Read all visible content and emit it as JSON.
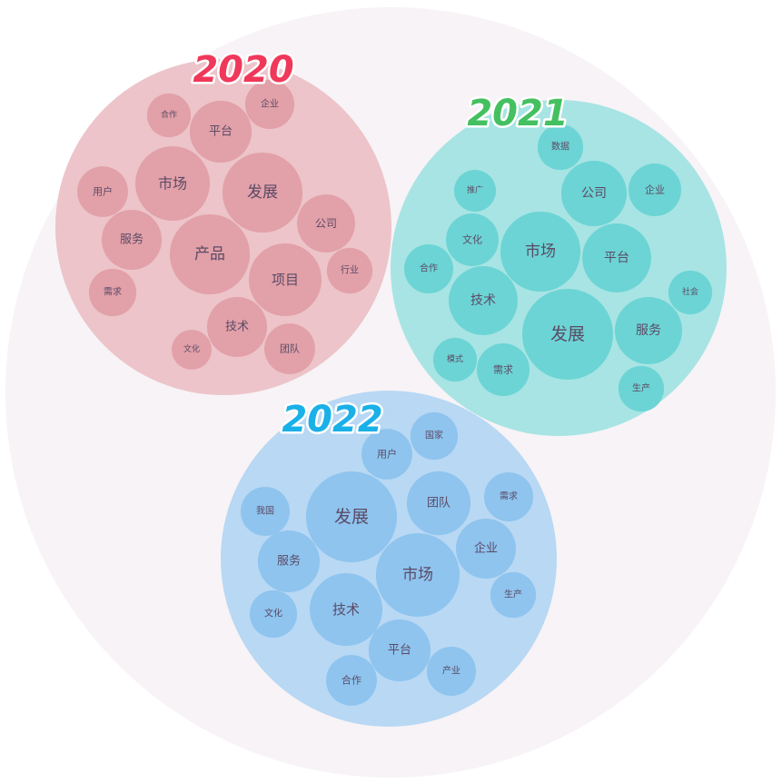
{
  "chart_data": {
    "type": "packed-bubble",
    "title": "",
    "groups": [
      {
        "name": "2020",
        "title_color": "#f0385a",
        "outer_color": "#ecc4c9",
        "bubble_color": "#e2a0a8",
        "items": [
          {
            "word": "合作",
            "value": 5.8
          },
          {
            "word": "平台",
            "value": 11.6
          },
          {
            "word": "企业",
            "value": 7.3
          },
          {
            "word": "市场",
            "value": 16.8
          },
          {
            "word": "发展",
            "value": 19.4
          },
          {
            "word": "用户",
            "value": 7.8
          },
          {
            "word": "服务",
            "value": 10.9
          },
          {
            "word": "产品",
            "value": 19.4
          },
          {
            "word": "公司",
            "value": 10.2
          },
          {
            "word": "项目",
            "value": 16.0
          },
          {
            "word": "行业",
            "value": 6.3
          },
          {
            "word": "需求",
            "value": 6.8
          },
          {
            "word": "技术",
            "value": 10.9
          },
          {
            "word": "文化",
            "value": 4.8
          },
          {
            "word": "团队",
            "value": 7.8
          }
        ]
      },
      {
        "name": "2021",
        "title_color": "#44c060",
        "outer_color": "#a8e4e4",
        "bubble_color": "#6cd4d4",
        "items": [
          {
            "word": "数据",
            "value": 6.3
          },
          {
            "word": "推广",
            "value": 5.3
          },
          {
            "word": "公司",
            "value": 13.0
          },
          {
            "word": "企业",
            "value": 8.4
          },
          {
            "word": "文化",
            "value": 8.4
          },
          {
            "word": "市场",
            "value": 19.4
          },
          {
            "word": "平台",
            "value": 14.4
          },
          {
            "word": "合作",
            "value": 7.3
          },
          {
            "word": "社会",
            "value": 5.8
          },
          {
            "word": "技术",
            "value": 14.4
          },
          {
            "word": "发展",
            "value": 25.0
          },
          {
            "word": "服务",
            "value": 13.7
          },
          {
            "word": "模式",
            "value": 5.8
          },
          {
            "word": "需求",
            "value": 8.4
          },
          {
            "word": "生产",
            "value": 6.3
          }
        ]
      },
      {
        "name": "2022",
        "title_color": "#1ab0e8",
        "outer_color": "#b8d8f4",
        "bubble_color": "#8ec4ee",
        "items": [
          {
            "word": "用户",
            "value": 7.8
          },
          {
            "word": "国家",
            "value": 6.8
          },
          {
            "word": "我国",
            "value": 7.3
          },
          {
            "word": "发展",
            "value": 25.0
          },
          {
            "word": "团队",
            "value": 12.3
          },
          {
            "word": "需求",
            "value": 7.3
          },
          {
            "word": "服务",
            "value": 11.6
          },
          {
            "word": "企业",
            "value": 10.9
          },
          {
            "word": "市场",
            "value": 21.2
          },
          {
            "word": "生产",
            "value": 6.3
          },
          {
            "word": "文化",
            "value": 6.8
          },
          {
            "word": "技术",
            "value": 16.0
          },
          {
            "word": "平台",
            "value": 11.6
          },
          {
            "word": "产业",
            "value": 7.3
          },
          {
            "word": "合作",
            "value": 7.8
          }
        ]
      }
    ],
    "background_color": "#f7f3f6",
    "label_color": "#5b4a66"
  }
}
